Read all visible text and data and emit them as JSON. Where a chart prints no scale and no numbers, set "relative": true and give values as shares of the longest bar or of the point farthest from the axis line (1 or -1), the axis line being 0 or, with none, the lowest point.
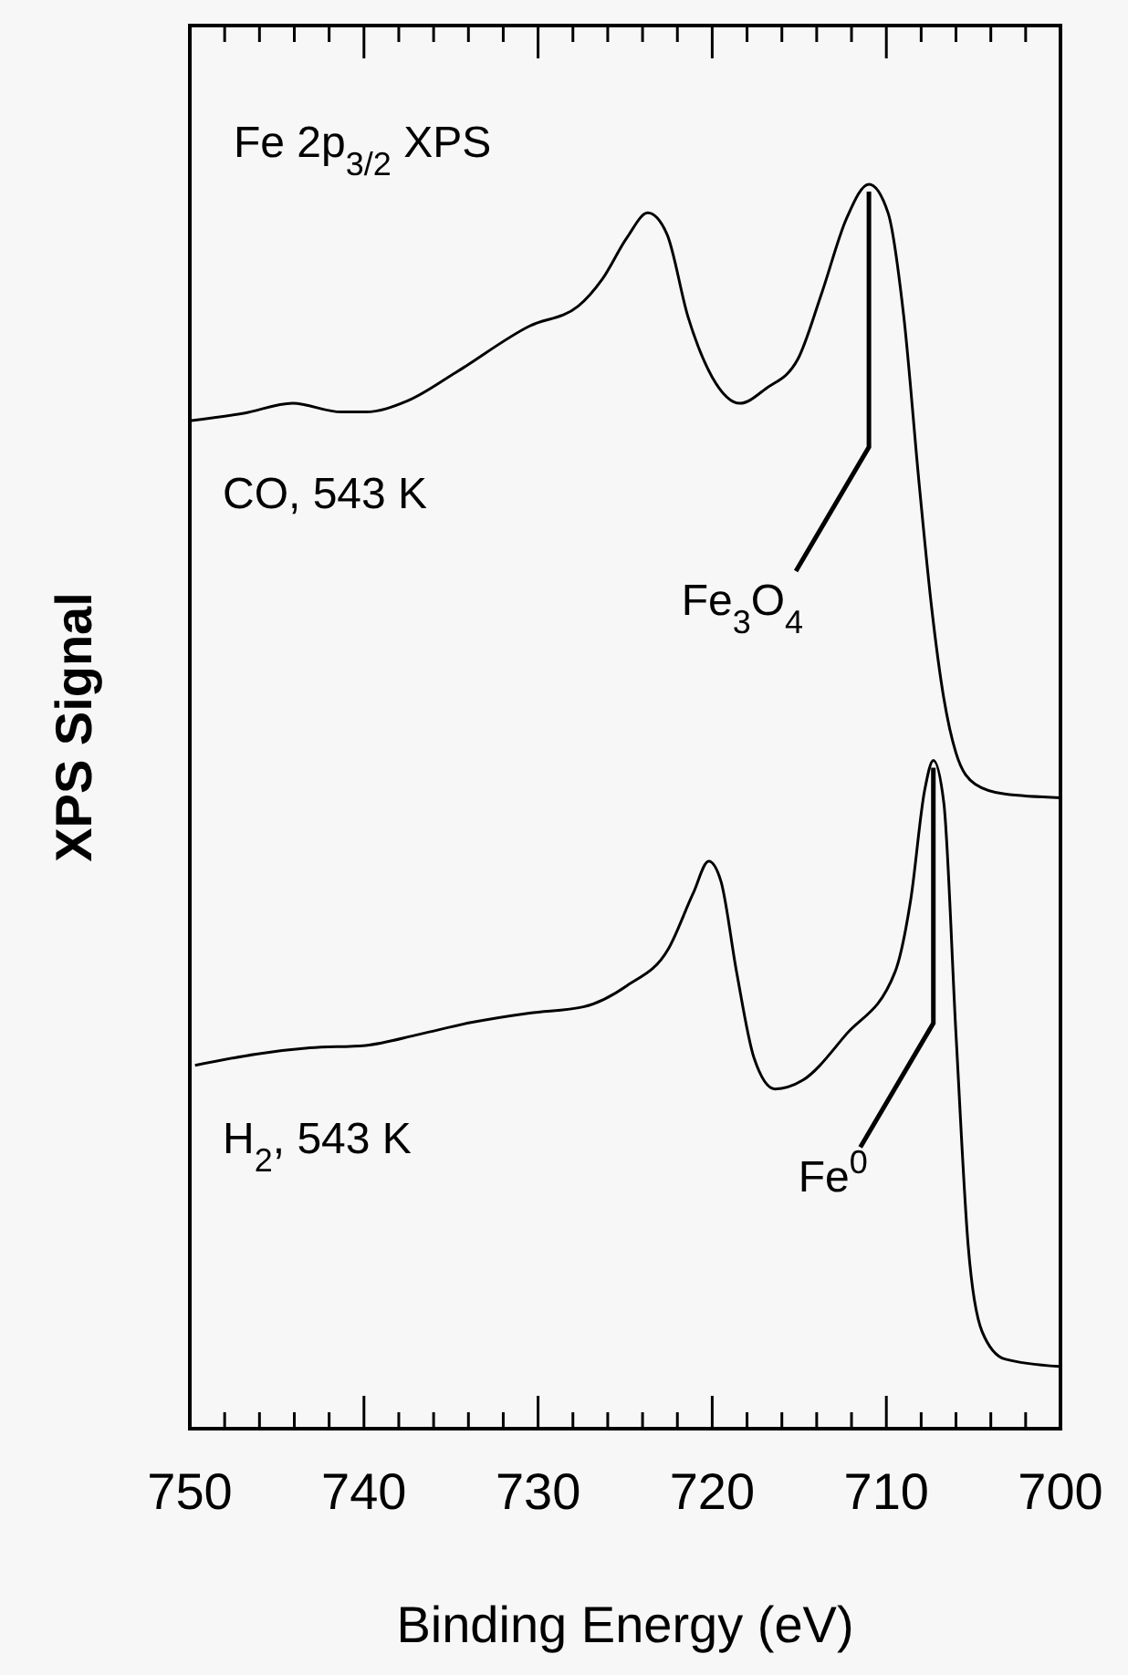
{
  "chart_data": {
    "type": "line",
    "relative": true,
    "title": "Fe 2p$_{3/2}$ XPS",
    "xlabel": "Binding Energy (eV)",
    "ylabel": "XPS Signal",
    "xlim": [
      750,
      700
    ],
    "xticks": [
      750,
      {
        "value": 748,
        "label": null
      },
      {
        "value": 746,
        "label": null
      },
      {
        "value": 744,
        "label": null
      },
      {
        "value": 742,
        "label": null
      },
      740,
      {
        "value": 738,
        "label": null
      },
      {
        "value": 736,
        "label": null
      },
      {
        "value": 734,
        "label": null
      },
      {
        "value": 732,
        "label": null
      },
      730,
      {
        "value": 728,
        "label": null
      },
      {
        "value": 726,
        "label": null
      },
      {
        "value": 724,
        "label": null
      },
      {
        "value": 722,
        "label": null
      },
      720,
      {
        "value": 718,
        "label": null
      },
      {
        "value": 716,
        "label": null
      },
      {
        "value": 714,
        "label": null
      },
      {
        "value": 712,
        "label": null
      },
      710,
      {
        "value": 708,
        "label": null
      },
      {
        "value": 706,
        "label": null
      },
      {
        "value": 704,
        "label": null
      },
      {
        "value": 702,
        "label": null
      },
      700
    ],
    "grid": false,
    "marker": "none",
    "line_style": "solid",
    "series": [
      {
        "name": "CO, 543 K",
        "color": "#000000",
        "x": [
          750,
          746.9,
          744.1,
          741.3,
          739.9,
          737.5,
          734.7,
          730.5,
          727.7,
          726.3,
          724.9,
          723.7,
          722.6,
          721.4,
          720,
          718.4,
          716.9,
          715.1,
          713.7,
          712.3,
          711,
          709.9,
          709,
          708.1,
          707.4,
          706.7,
          706,
          704.9,
          703.2,
          700
        ],
        "values": [
          0.81,
          0.816,
          0.824,
          0.817,
          0.817,
          0.826,
          0.849,
          0.886,
          0.902,
          0.924,
          0.957,
          0.977,
          0.96,
          0.894,
          0.845,
          0.824,
          0.836,
          0.859,
          0.913,
          0.972,
          1.0,
          0.977,
          0.894,
          0.757,
          0.66,
          0.587,
          0.543,
          0.518,
          0.51,
          0.507
        ]
      },
      {
        "name": "H$_{2}$, 543 K",
        "color": "#000000",
        "x": [
          749.7,
          746.2,
          743.1,
          739.9,
          736.8,
          734,
          730.5,
          727.4,
          724.9,
          722.5,
          721.1,
          720.2,
          719.5,
          718.6,
          717.6,
          716.4,
          714.8,
          712.3,
          709.5,
          708.6,
          707.8,
          707.3,
          706.7,
          706,
          705.3,
          704.5,
          703.2,
          700.1
        ],
        "values": [
          0.292,
          0.301,
          0.306,
          0.308,
          0.317,
          0.326,
          0.334,
          0.339,
          0.356,
          0.386,
          0.43,
          0.456,
          0.44,
          0.367,
          0.298,
          0.273,
          0.28,
          0.317,
          0.367,
          0.425,
          0.513,
          0.537,
          0.503,
          0.317,
          0.147,
          0.078,
          0.056,
          0.05
        ]
      }
    ],
    "annotations": [
      {
        "text": "Fe$_{3}$O$_{4}$",
        "x": 711,
        "y": 1.0
      },
      {
        "text": "Fe$^{0}$",
        "x": 707.3,
        "y": 0.537
      }
    ]
  }
}
